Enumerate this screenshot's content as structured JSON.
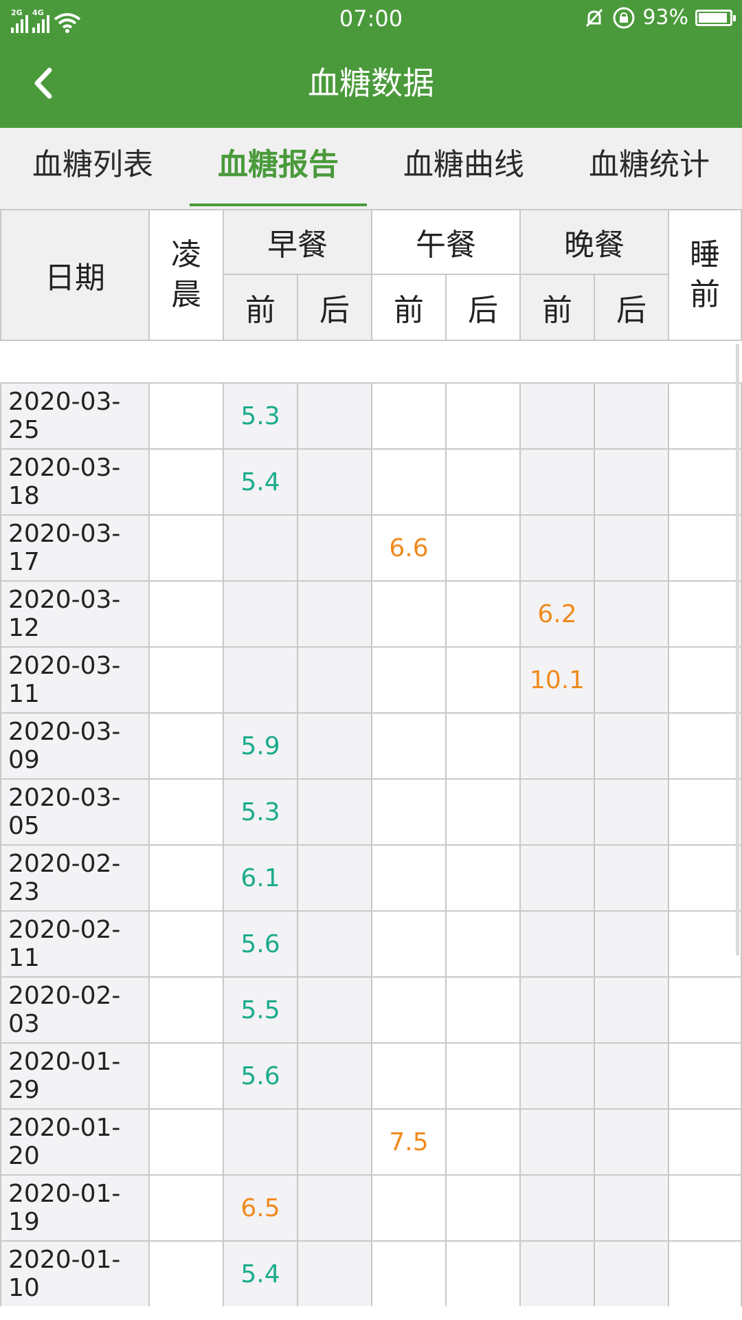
{
  "status_bar": {
    "network_1": "2G",
    "network_2": "4G",
    "time": "07:00",
    "battery_percent": "93%",
    "battery_level": 0.93,
    "icons": [
      "signal-icon",
      "wifi-icon",
      "mute-bell-icon",
      "rotation-lock-icon",
      "battery-icon"
    ]
  },
  "app_bar": {
    "title": "血糖数据",
    "back_icon": "chevron-left-icon"
  },
  "tabs": [
    {
      "label": "血糖列表",
      "active": false
    },
    {
      "label": "血糖报告",
      "active": true
    },
    {
      "label": "血糖曲线",
      "active": false
    },
    {
      "label": "血糖统计",
      "active": false
    }
  ],
  "table": {
    "header": {
      "date": "日期",
      "early_morning": [
        "凌",
        "晨"
      ],
      "breakfast": "早餐",
      "lunch": "午餐",
      "dinner": "晚餐",
      "bedtime": [
        "睡",
        "前"
      ],
      "before": "前",
      "after": "后"
    },
    "colors": {
      "normal": "#1aab8a",
      "high": "#f08a1c"
    },
    "rows": [
      {
        "date": "2020-03-25",
        "cells": [
          "",
          "5.3",
          "",
          "",
          "",
          "",
          "",
          ""
        ],
        "levels": [
          "",
          "normal",
          "",
          "",
          "",
          "",
          "",
          ""
        ]
      },
      {
        "date": "2020-03-18",
        "cells": [
          "",
          "5.4",
          "",
          "",
          "",
          "",
          "",
          ""
        ],
        "levels": [
          "",
          "normal",
          "",
          "",
          "",
          "",
          "",
          ""
        ]
      },
      {
        "date": "2020-03-17",
        "cells": [
          "",
          "",
          "",
          "6.6",
          "",
          "",
          "",
          ""
        ],
        "levels": [
          "",
          "",
          "",
          "high",
          "",
          "",
          "",
          ""
        ]
      },
      {
        "date": "2020-03-12",
        "cells": [
          "",
          "",
          "",
          "",
          "",
          "6.2",
          "",
          ""
        ],
        "levels": [
          "",
          "",
          "",
          "",
          "",
          "high",
          "",
          ""
        ]
      },
      {
        "date": "2020-03-11",
        "cells": [
          "",
          "",
          "",
          "",
          "",
          "10.1",
          "",
          ""
        ],
        "levels": [
          "",
          "",
          "",
          "",
          "",
          "high",
          "",
          ""
        ]
      },
      {
        "date": "2020-03-09",
        "cells": [
          "",
          "5.9",
          "",
          "",
          "",
          "",
          "",
          ""
        ],
        "levels": [
          "",
          "normal",
          "",
          "",
          "",
          "",
          "",
          ""
        ]
      },
      {
        "date": "2020-03-05",
        "cells": [
          "",
          "5.3",
          "",
          "",
          "",
          "",
          "",
          ""
        ],
        "levels": [
          "",
          "normal",
          "",
          "",
          "",
          "",
          "",
          ""
        ]
      },
      {
        "date": "2020-02-23",
        "cells": [
          "",
          "6.1",
          "",
          "",
          "",
          "",
          "",
          ""
        ],
        "levels": [
          "",
          "normal",
          "",
          "",
          "",
          "",
          "",
          ""
        ]
      },
      {
        "date": "2020-02-11",
        "cells": [
          "",
          "5.6",
          "",
          "",
          "",
          "",
          "",
          ""
        ],
        "levels": [
          "",
          "normal",
          "",
          "",
          "",
          "",
          "",
          ""
        ]
      },
      {
        "date": "2020-02-03",
        "cells": [
          "",
          "5.5",
          "",
          "",
          "",
          "",
          "",
          ""
        ],
        "levels": [
          "",
          "normal",
          "",
          "",
          "",
          "",
          "",
          ""
        ]
      },
      {
        "date": "2020-01-29",
        "cells": [
          "",
          "5.6",
          "",
          "",
          "",
          "",
          "",
          ""
        ],
        "levels": [
          "",
          "normal",
          "",
          "",
          "",
          "",
          "",
          ""
        ]
      },
      {
        "date": "2020-01-20",
        "cells": [
          "",
          "",
          "",
          "7.5",
          "",
          "",
          "",
          ""
        ],
        "levels": [
          "",
          "",
          "",
          "high",
          "",
          "",
          "",
          ""
        ]
      },
      {
        "date": "2020-01-19",
        "cells": [
          "",
          "6.5",
          "",
          "",
          "",
          "",
          "",
          ""
        ],
        "levels": [
          "",
          "high",
          "",
          "",
          "",
          "",
          "",
          ""
        ]
      },
      {
        "date": "2020-01-10",
        "cells": [
          "",
          "5.4",
          "",
          "",
          "",
          "",
          "",
          ""
        ],
        "levels": [
          "",
          "normal",
          "",
          "",
          "",
          "",
          "",
          ""
        ]
      }
    ]
  }
}
